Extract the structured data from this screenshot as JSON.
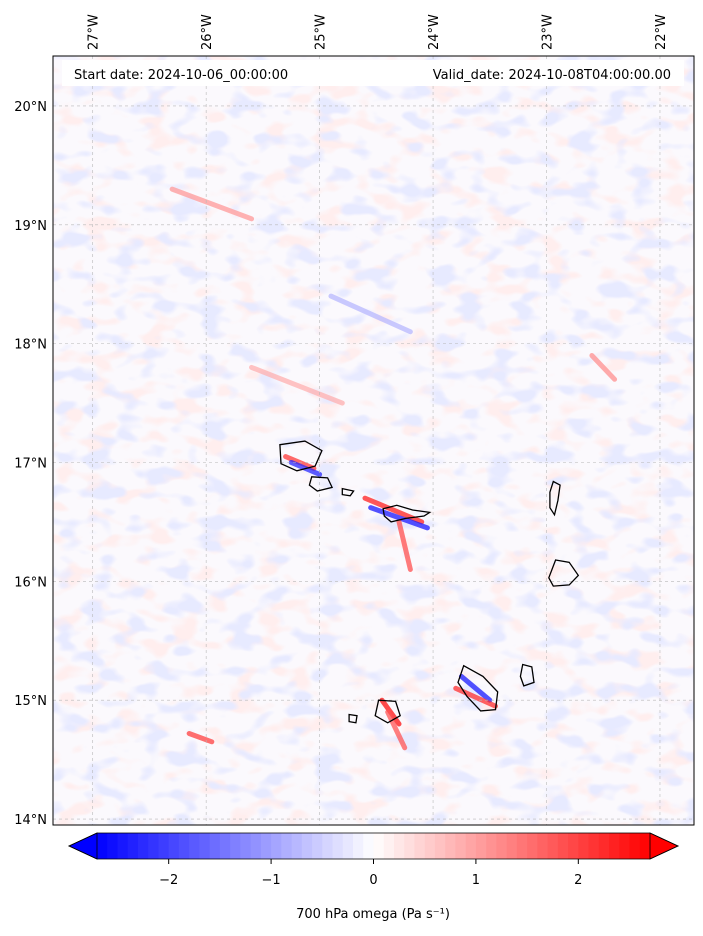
{
  "header": {
    "start_label": "Start date: 2024-10-06_00:00:00",
    "valid_label": "Valid_date: 2024-10-08T04:00:00.00"
  },
  "map": {
    "lon_labels": [
      "27°W",
      "26°W",
      "25°W",
      "24°W",
      "23°W",
      "22°W"
    ],
    "lat_labels": [
      "20°N",
      "19°N",
      "18°N",
      "17°N",
      "16°N",
      "15°N",
      "14°N"
    ],
    "lon_ticks": [
      -27,
      -26,
      -25,
      -24,
      -23,
      -22
    ],
    "lat_ticks": [
      20,
      19,
      18,
      17,
      16,
      15,
      14
    ],
    "extent": {
      "lon": [
        -27.35,
        -21.7
      ],
      "lat": [
        13.95,
        20.42
      ]
    },
    "islands": [
      {
        "name": "Santo Antão",
        "points": [
          [
            -25.35,
            17.15
          ],
          [
            -25.13,
            17.18
          ],
          [
            -24.98,
            17.1
          ],
          [
            -25.04,
            16.97
          ],
          [
            -25.2,
            16.93
          ],
          [
            -25.34,
            16.99
          ]
        ]
      },
      {
        "name": "São Vicente",
        "points": [
          [
            -25.07,
            16.88
          ],
          [
            -24.93,
            16.87
          ],
          [
            -24.89,
            16.79
          ],
          [
            -25.02,
            16.76
          ],
          [
            -25.09,
            16.81
          ]
        ]
      },
      {
        "name": "Santa Luzia",
        "points": [
          [
            -24.8,
            16.78
          ],
          [
            -24.7,
            16.76
          ],
          [
            -24.73,
            16.72
          ],
          [
            -24.8,
            16.73
          ]
        ]
      },
      {
        "name": "São Nicolau",
        "points": [
          [
            -24.44,
            16.61
          ],
          [
            -24.32,
            16.64
          ],
          [
            -24.18,
            16.6
          ],
          [
            -24.03,
            16.58
          ],
          [
            -24.08,
            16.55
          ],
          [
            -24.24,
            16.53
          ],
          [
            -24.37,
            16.5
          ],
          [
            -24.43,
            16.55
          ]
        ]
      },
      {
        "name": "Sal",
        "points": [
          [
            -22.94,
            16.84
          ],
          [
            -22.88,
            16.81
          ],
          [
            -22.9,
            16.68
          ],
          [
            -22.93,
            16.56
          ],
          [
            -22.97,
            16.62
          ],
          [
            -22.97,
            16.75
          ]
        ]
      },
      {
        "name": "Boa Vista",
        "points": [
          [
            -22.92,
            16.18
          ],
          [
            -22.8,
            16.16
          ],
          [
            -22.72,
            16.05
          ],
          [
            -22.8,
            15.97
          ],
          [
            -22.94,
            15.96
          ],
          [
            -22.98,
            16.03
          ]
        ]
      },
      {
        "name": "Maio",
        "points": [
          [
            -23.21,
            15.3
          ],
          [
            -23.13,
            15.28
          ],
          [
            -23.11,
            15.15
          ],
          [
            -23.2,
            15.12
          ],
          [
            -23.23,
            15.2
          ]
        ]
      },
      {
        "name": "Santiago",
        "points": [
          [
            -23.73,
            15.29
          ],
          [
            -23.56,
            15.2
          ],
          [
            -23.43,
            15.07
          ],
          [
            -23.45,
            14.92
          ],
          [
            -23.58,
            14.91
          ],
          [
            -23.7,
            15.03
          ],
          [
            -23.78,
            15.15
          ]
        ]
      },
      {
        "name": "Fogo",
        "points": [
          [
            -24.48,
            15.0
          ],
          [
            -24.33,
            14.99
          ],
          [
            -24.29,
            14.87
          ],
          [
            -24.4,
            14.81
          ],
          [
            -24.51,
            14.87
          ]
        ]
      },
      {
        "name": "Brava",
        "points": [
          [
            -24.74,
            14.88
          ],
          [
            -24.67,
            14.87
          ],
          [
            -24.68,
            14.81
          ],
          [
            -24.74,
            14.82
          ]
        ]
      }
    ]
  },
  "colorbar": {
    "min": -2.7,
    "max": 2.7,
    "ticks": [
      -2,
      -1,
      0,
      1,
      2
    ],
    "tick_labels": [
      "−2",
      "−1",
      "0",
      "1",
      "2"
    ],
    "extend": "both",
    "cmap": "bwr",
    "low_color": "#0000ff",
    "mid_color": "#ffffff",
    "high_color": "#ff0000"
  },
  "colorbar_label": "700 hPa omega (Pa s⁻¹)"
}
